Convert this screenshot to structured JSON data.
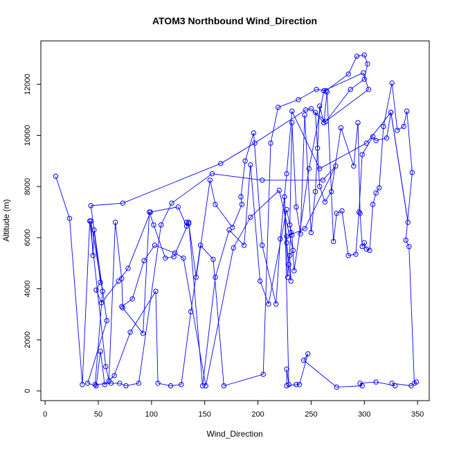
{
  "chart_data": {
    "type": "line",
    "title": "ATOM3 Northbound Wind_Direction",
    "xlabel": "Wind_Direction",
    "ylabel": "Altitude (m)",
    "xlim": [
      -4,
      361
    ],
    "ylim": [
      -380,
      13700
    ],
    "x_ticks": [
      0,
      50,
      100,
      150,
      200,
      250,
      300,
      350
    ],
    "y_ticks": [
      0,
      2000,
      4000,
      6000,
      8000,
      10000,
      12000
    ],
    "x_tick_labels": [
      "0",
      "50",
      "100",
      "150",
      "200",
      "250",
      "300",
      "350"
    ],
    "y_tick_labels": [
      "0",
      "2000",
      "4000",
      "6000",
      "8000",
      "10000",
      "12000"
    ],
    "grid": false,
    "legend": "none",
    "series": [
      {
        "color": "#0000ff",
        "marker": "open-circle",
        "points": [
          [
            10,
            8400
          ],
          [
            23,
            6750
          ],
          [
            35,
            250
          ],
          [
            42,
            6650
          ],
          [
            57,
            950
          ],
          [
            60,
            400
          ],
          [
            66,
            6600
          ],
          [
            72,
            4400
          ],
          [
            73,
            3250
          ],
          [
            92,
            2250
          ],
          [
            98,
            7000
          ],
          [
            102,
            6500
          ],
          [
            113,
            5200
          ],
          [
            121,
            5250
          ],
          [
            135,
            6600
          ],
          [
            148,
            200
          ],
          [
            160,
            4450
          ],
          [
            173,
            6300
          ],
          [
            187,
            5700
          ],
          [
            193,
            8850
          ],
          [
            202,
            4300
          ],
          [
            210,
            3400
          ],
          [
            227,
            7100
          ],
          [
            232,
            6100
          ],
          [
            234,
            4700
          ],
          [
            248,
            8700
          ],
          [
            262,
            11750
          ],
          [
            299,
            12450
          ],
          [
            304,
            11800
          ],
          [
            262,
            10500
          ],
          [
            250,
            11050
          ],
          [
            245,
            11000
          ],
          [
            197,
            9700
          ],
          [
            165,
            8900
          ],
          [
            73,
            7350
          ],
          [
            43,
            7250
          ],
          [
            58,
            2750
          ],
          [
            40,
            300
          ],
          [
            48,
            200
          ],
          [
            52,
            1550
          ],
          [
            56,
            250
          ],
          [
            65,
            600
          ],
          [
            80,
            2300
          ],
          [
            104,
            3900
          ],
          [
            106,
            300
          ],
          [
            118,
            200
          ],
          [
            128,
            250
          ],
          [
            137,
            3100
          ],
          [
            146,
            5700
          ],
          [
            158,
            5150
          ],
          [
            168,
            200
          ],
          [
            205,
            650
          ],
          [
            212,
            9700
          ],
          [
            219,
            11100
          ],
          [
            238,
            11400
          ],
          [
            255,
            11800
          ],
          [
            264,
            11750
          ],
          [
            285,
            12400
          ],
          [
            293,
            13100
          ],
          [
            300,
            13150
          ],
          [
            303,
            12800
          ],
          [
            300,
            12200
          ],
          [
            287,
            11800
          ],
          [
            264,
            10550
          ],
          [
            254,
            10900
          ],
          [
            256,
            9500
          ],
          [
            258,
            8000
          ],
          [
            263,
            7400
          ],
          [
            269,
            7800
          ],
          [
            278,
            10300
          ],
          [
            290,
            8800
          ],
          [
            294,
            10500
          ],
          [
            296,
            6950
          ],
          [
            298,
            5650
          ],
          [
            300,
            5800
          ],
          [
            302,
            5550
          ],
          [
            305,
            5500
          ],
          [
            308,
            7300
          ],
          [
            311,
            7750
          ],
          [
            314,
            7950
          ],
          [
            318,
            10350
          ],
          [
            326,
            12050
          ],
          [
            331,
            10200
          ],
          [
            337,
            10350
          ],
          [
            340,
            10950
          ],
          [
            345,
            8550
          ],
          [
            339,
            5900
          ],
          [
            342,
            5650
          ],
          [
            347,
            300
          ],
          [
            349,
            350
          ],
          [
            344,
            200
          ],
          [
            326,
            300
          ],
          [
            329,
            200
          ],
          [
            311,
            350
          ],
          [
            296,
            300
          ],
          [
            298,
            200
          ],
          [
            274,
            150
          ],
          [
            243,
            1200
          ],
          [
            247,
            1450
          ],
          [
            239,
            250
          ],
          [
            236,
            250
          ],
          [
            227,
            200
          ],
          [
            227,
            850
          ],
          [
            229,
            250
          ],
          [
            225,
            7600
          ],
          [
            228,
            4450
          ],
          [
            231,
            6200
          ],
          [
            230,
            6500
          ],
          [
            232,
            10500
          ],
          [
            236,
            7200
          ],
          [
            240,
            6150
          ],
          [
            244,
            10800
          ],
          [
            250,
            6200
          ],
          [
            254,
            7800
          ],
          [
            258,
            11150
          ],
          [
            262,
            10500
          ],
          [
            265,
            11700
          ],
          [
            271,
            5850
          ],
          [
            274,
            6950
          ],
          [
            279,
            7050
          ],
          [
            285,
            5300
          ],
          [
            292,
            5350
          ],
          [
            295,
            7000
          ],
          [
            298,
            9250
          ],
          [
            308,
            9950
          ],
          [
            311,
            9800
          ],
          [
            321,
            9900
          ],
          [
            325,
            10900
          ],
          [
            341,
            6600
          ],
          [
            325,
            10900
          ],
          [
            302,
            9700
          ],
          [
            258,
            8700
          ],
          [
            232,
            10950
          ],
          [
            227,
            8500
          ],
          [
            221,
            5950
          ],
          [
            217,
            3400
          ],
          [
            204,
            5700
          ],
          [
            196,
            10100
          ],
          [
            188,
            9000
          ],
          [
            184,
            7600
          ],
          [
            185,
            7300
          ],
          [
            176,
            6400
          ],
          [
            160,
            7300
          ],
          [
            155,
            8250
          ],
          [
            142,
            4450
          ],
          [
            135,
            6550
          ],
          [
            133,
            6600
          ],
          [
            133,
            6450
          ],
          [
            125,
            7200
          ],
          [
            99,
            7000
          ],
          [
            78,
            4800
          ],
          [
            69,
            4300
          ],
          [
            53,
            3450
          ],
          [
            48,
            3950
          ],
          [
            52,
            4250
          ],
          [
            46,
            6300
          ],
          [
            45,
            5300
          ],
          [
            43,
            6650
          ],
          [
            54,
            3900
          ],
          [
            47,
            250
          ],
          [
            62,
            300
          ],
          [
            70,
            300
          ],
          [
            76,
            200
          ],
          [
            88,
            300
          ],
          [
            109,
            6500
          ],
          [
            119,
            7350
          ],
          [
            157,
            8500
          ],
          [
            204,
            8250
          ],
          [
            261,
            8250
          ],
          [
            273,
            8800
          ],
          [
            244,
            6350
          ],
          [
            227,
            6050
          ],
          [
            227,
            5800
          ],
          [
            229,
            4950
          ],
          [
            231,
            4300
          ],
          [
            230,
            5300
          ],
          [
            233,
            5500
          ],
          [
            220,
            7850
          ],
          [
            193,
            6800
          ],
          [
            177,
            5600
          ],
          [
            151,
            200
          ],
          [
            130,
            5200
          ],
          [
            122,
            5400
          ],
          [
            103,
            5700
          ],
          [
            93,
            5100
          ],
          [
            82,
            3600
          ],
          [
            72,
            3300
          ]
        ]
      }
    ]
  }
}
